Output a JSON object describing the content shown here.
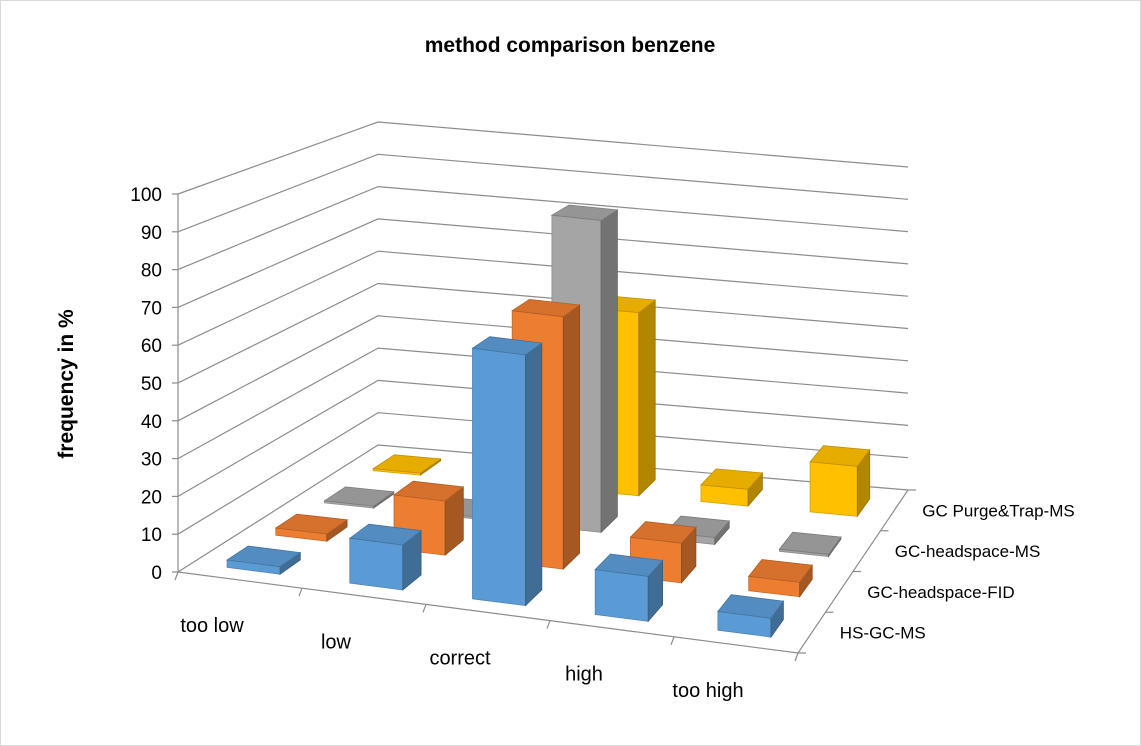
{
  "chart_data": {
    "type": "bar",
    "subtype": "3d-column",
    "title": "method comparison benzene",
    "ylabel": "frequency in %",
    "xlabel": "",
    "ylim": [
      0,
      100
    ],
    "yticks": [
      "0",
      "10",
      "20",
      "30",
      "40",
      "50",
      "60",
      "70",
      "80",
      "90",
      "100"
    ],
    "categories": [
      "too low",
      "low",
      "correct",
      "high",
      "too high"
    ],
    "series": [
      {
        "name": "HS-GC-MS",
        "color": "#5b9bd5",
        "values": [
          2,
          12,
          67,
          12,
          5
        ]
      },
      {
        "name": "GC-headspace-FID",
        "color": "#ed7d31",
        "values": [
          2,
          15,
          70,
          11,
          4
        ]
      },
      {
        "name": "GC-headspace-MS",
        "color": "#a5a5a5",
        "values": [
          0,
          0,
          90,
          2,
          0
        ]
      },
      {
        "name": "GC Purge&Trap-MS",
        "color": "#ffc000",
        "values": [
          0,
          0,
          55,
          5,
          15
        ]
      }
    ],
    "grid": true
  }
}
